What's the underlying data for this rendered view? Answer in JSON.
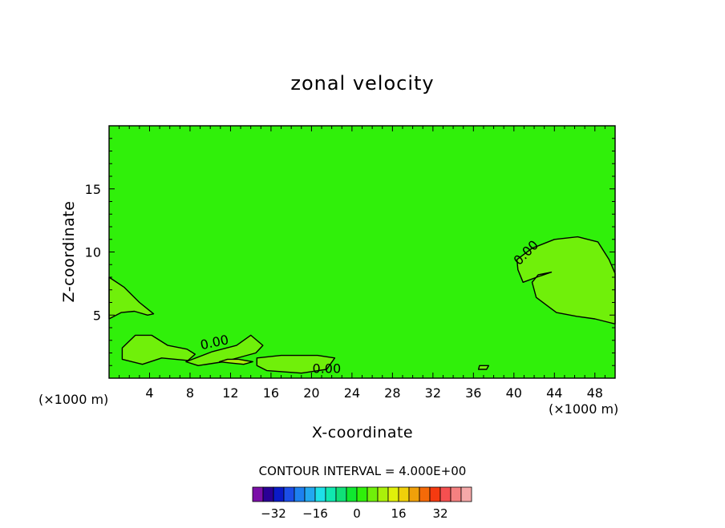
{
  "chart_data": {
    "type": "contour",
    "title": "zonal velocity",
    "xlabel": "X-coordinate",
    "ylabel": "Z-coordinate",
    "x_unit_left": "(×1000 m)",
    "x_unit_right": "(×1000 m)",
    "xlim": [
      0,
      50
    ],
    "ylim": [
      0,
      20
    ],
    "x_ticks": [
      "4",
      "8",
      "12",
      "16",
      "20",
      "24",
      "28",
      "32",
      "36",
      "40",
      "44",
      "48"
    ],
    "y_ticks": [
      "5",
      "10",
      "15"
    ],
    "contour_interval_text": "CONTOUR INTERVAL = 4.000E+00",
    "contour_interval": 4,
    "contour_labels": [
      {
        "text": "0.00",
        "x": 10.5,
        "y": 2.5
      },
      {
        "text": "0.00",
        "x": 21.5,
        "y": 0.4
      },
      {
        "text": "0.00",
        "x": 41.5,
        "y": 9.7
      }
    ],
    "background_level": 0,
    "regions": [
      {
        "level": 4,
        "points": [
          [
            0,
            8
          ],
          [
            1.5,
            7.2
          ],
          [
            3,
            6
          ],
          [
            4.4,
            5.1
          ],
          [
            3.8,
            5.0
          ],
          [
            2.5,
            5.3
          ],
          [
            1.2,
            5.2
          ],
          [
            0,
            4.7
          ]
        ]
      },
      {
        "level": 4,
        "points": [
          [
            1.3,
            2.4
          ],
          [
            2.6,
            3.4
          ],
          [
            4.2,
            3.4
          ],
          [
            5.8,
            2.6
          ],
          [
            7.7,
            2.3
          ],
          [
            8.5,
            1.9
          ],
          [
            7.8,
            1.4
          ],
          [
            5.2,
            1.6
          ],
          [
            3.3,
            1.1
          ],
          [
            1.3,
            1.5
          ]
        ]
      },
      {
        "level": 4,
        "points": [
          [
            7.6,
            1.3
          ],
          [
            10.2,
            2.1
          ],
          [
            12.6,
            2.6
          ],
          [
            14,
            3.4
          ],
          [
            15.2,
            2.6
          ],
          [
            14.5,
            2.0
          ],
          [
            11.3,
            1.3
          ],
          [
            8.8,
            1.0
          ]
        ]
      },
      {
        "level": 4,
        "points": [
          [
            14.6,
            1.6
          ],
          [
            17.0,
            1.8
          ],
          [
            20.6,
            1.8
          ],
          [
            22.3,
            1.6
          ],
          [
            21.5,
            0.7
          ],
          [
            19,
            0.4
          ],
          [
            15.6,
            0.6
          ],
          [
            14.6,
            1.0
          ]
        ]
      },
      {
        "level": 4,
        "points": [
          [
            40.3,
            9.4
          ],
          [
            41.8,
            10.3
          ],
          [
            44,
            11
          ],
          [
            46.3,
            11.2
          ],
          [
            48.3,
            10.8
          ],
          [
            49.4,
            9.4
          ],
          [
            50,
            8.3
          ],
          [
            50,
            4.3
          ],
          [
            48,
            4.7
          ],
          [
            46.2,
            4.9
          ],
          [
            44.2,
            5.2
          ],
          [
            42.2,
            6.4
          ],
          [
            41.8,
            7.6
          ],
          [
            42.4,
            8.2
          ],
          [
            43.7,
            8.4
          ],
          [
            42.6,
            8.1
          ],
          [
            40.9,
            7.6
          ],
          [
            40.4,
            8.6
          ]
        ]
      },
      {
        "level": 8,
        "points": [
          [
            10.9,
            1.3
          ],
          [
            12,
            1.2
          ],
          [
            13.3,
            1.1
          ],
          [
            14.2,
            1.3
          ],
          [
            12.8,
            1.5
          ],
          [
            11.7,
            1.5
          ]
        ]
      },
      {
        "level": 4,
        "points": [
          [
            36.6,
            1.0
          ],
          [
            37.5,
            1.0
          ],
          [
            37.3,
            0.7
          ],
          [
            36.5,
            0.7
          ]
        ]
      }
    ],
    "colorbar": {
      "tick_labels": [
        "−32",
        "−16",
        "0",
        "16",
        "32"
      ],
      "tick_values": [
        -32,
        -16,
        0,
        16,
        32
      ],
      "colors": [
        "#7a0fa8",
        "#2a0096",
        "#0a1ac8",
        "#1b4ee8",
        "#1d80f0",
        "#22a8f0",
        "#1ee0e8",
        "#10e8b0",
        "#10e078",
        "#10e830",
        "#30f00a",
        "#70f00a",
        "#aaf00a",
        "#e0f00a",
        "#f0d00a",
        "#f0a00a",
        "#f56a08",
        "#f53a10",
        "#f55050",
        "#f58080",
        "#f5a8a8"
      ]
    }
  }
}
